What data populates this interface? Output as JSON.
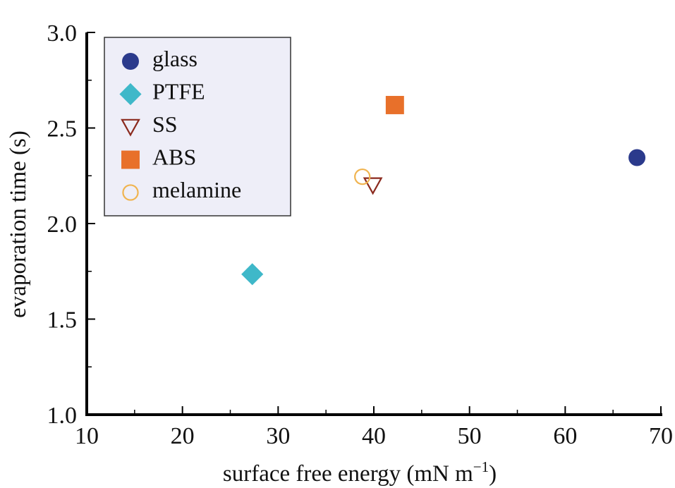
{
  "chart_data": {
    "type": "scatter",
    "title": "",
    "xlabel": "surface free energy (mN m",
    "xlabel_superscript": "−1",
    "xlabel_suffix": ")",
    "ylabel": "evaporation time (s)",
    "xlim": [
      10,
      70
    ],
    "ylim": [
      1.0,
      3.0
    ],
    "x_ticks": [
      10,
      20,
      30,
      40,
      50,
      60,
      70
    ],
    "x_tick_labels": [
      "10",
      "20",
      "30",
      "40",
      "50",
      "60",
      "70"
    ],
    "y_ticks": [
      1.0,
      1.5,
      2.0,
      2.5,
      3.0
    ],
    "y_tick_labels": [
      "1.0",
      "1.5",
      "2.0",
      "2.5",
      "3.0"
    ],
    "x_minor_ticks": [
      15,
      25,
      35,
      45,
      55,
      65
    ],
    "y_minor_ticks": [
      1.25,
      1.75,
      2.25,
      2.75
    ],
    "grid": false,
    "legend_position": "top-left",
    "series": [
      {
        "name": "glass",
        "marker": "circle-filled",
        "color": "#2b3a8c",
        "x": [
          67.5
        ],
        "y": [
          2.345
        ]
      },
      {
        "name": "PTFE",
        "marker": "diamond-filled",
        "color": "#3fb8c9",
        "x": [
          27.3
        ],
        "y": [
          1.735
        ]
      },
      {
        "name": "SS",
        "marker": "triangle-down-open",
        "color": "#8b2a1e",
        "x": [
          39.9
        ],
        "y": [
          2.2
        ]
      },
      {
        "name": "ABS",
        "marker": "square-filled",
        "color": "#e8702a",
        "x": [
          42.2
        ],
        "y": [
          2.62
        ]
      },
      {
        "name": "melamine",
        "marker": "circle-open",
        "color": "#f0b450",
        "x": [
          38.8
        ],
        "y": [
          2.245
        ]
      }
    ]
  }
}
